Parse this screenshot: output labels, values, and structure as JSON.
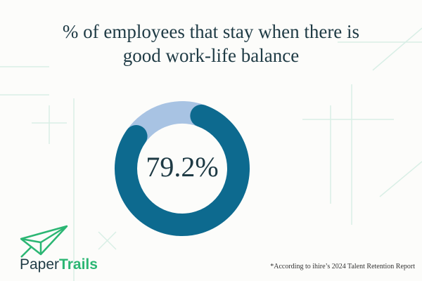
{
  "chart_data": {
    "type": "donut",
    "title": "% of employees that stay when there is good work-life balance",
    "categories": [
      null,
      null
    ],
    "values": [
      79.2,
      20.8
    ],
    "value_labels": [
      "79.2%",
      null
    ],
    "colors": [
      "#0d6a8f",
      "#a8c3e3"
    ],
    "footnote": "*According to ihire’s 2024 Talent Retention Report"
  },
  "brand": {
    "first": "Paper",
    "second": "Trails"
  }
}
